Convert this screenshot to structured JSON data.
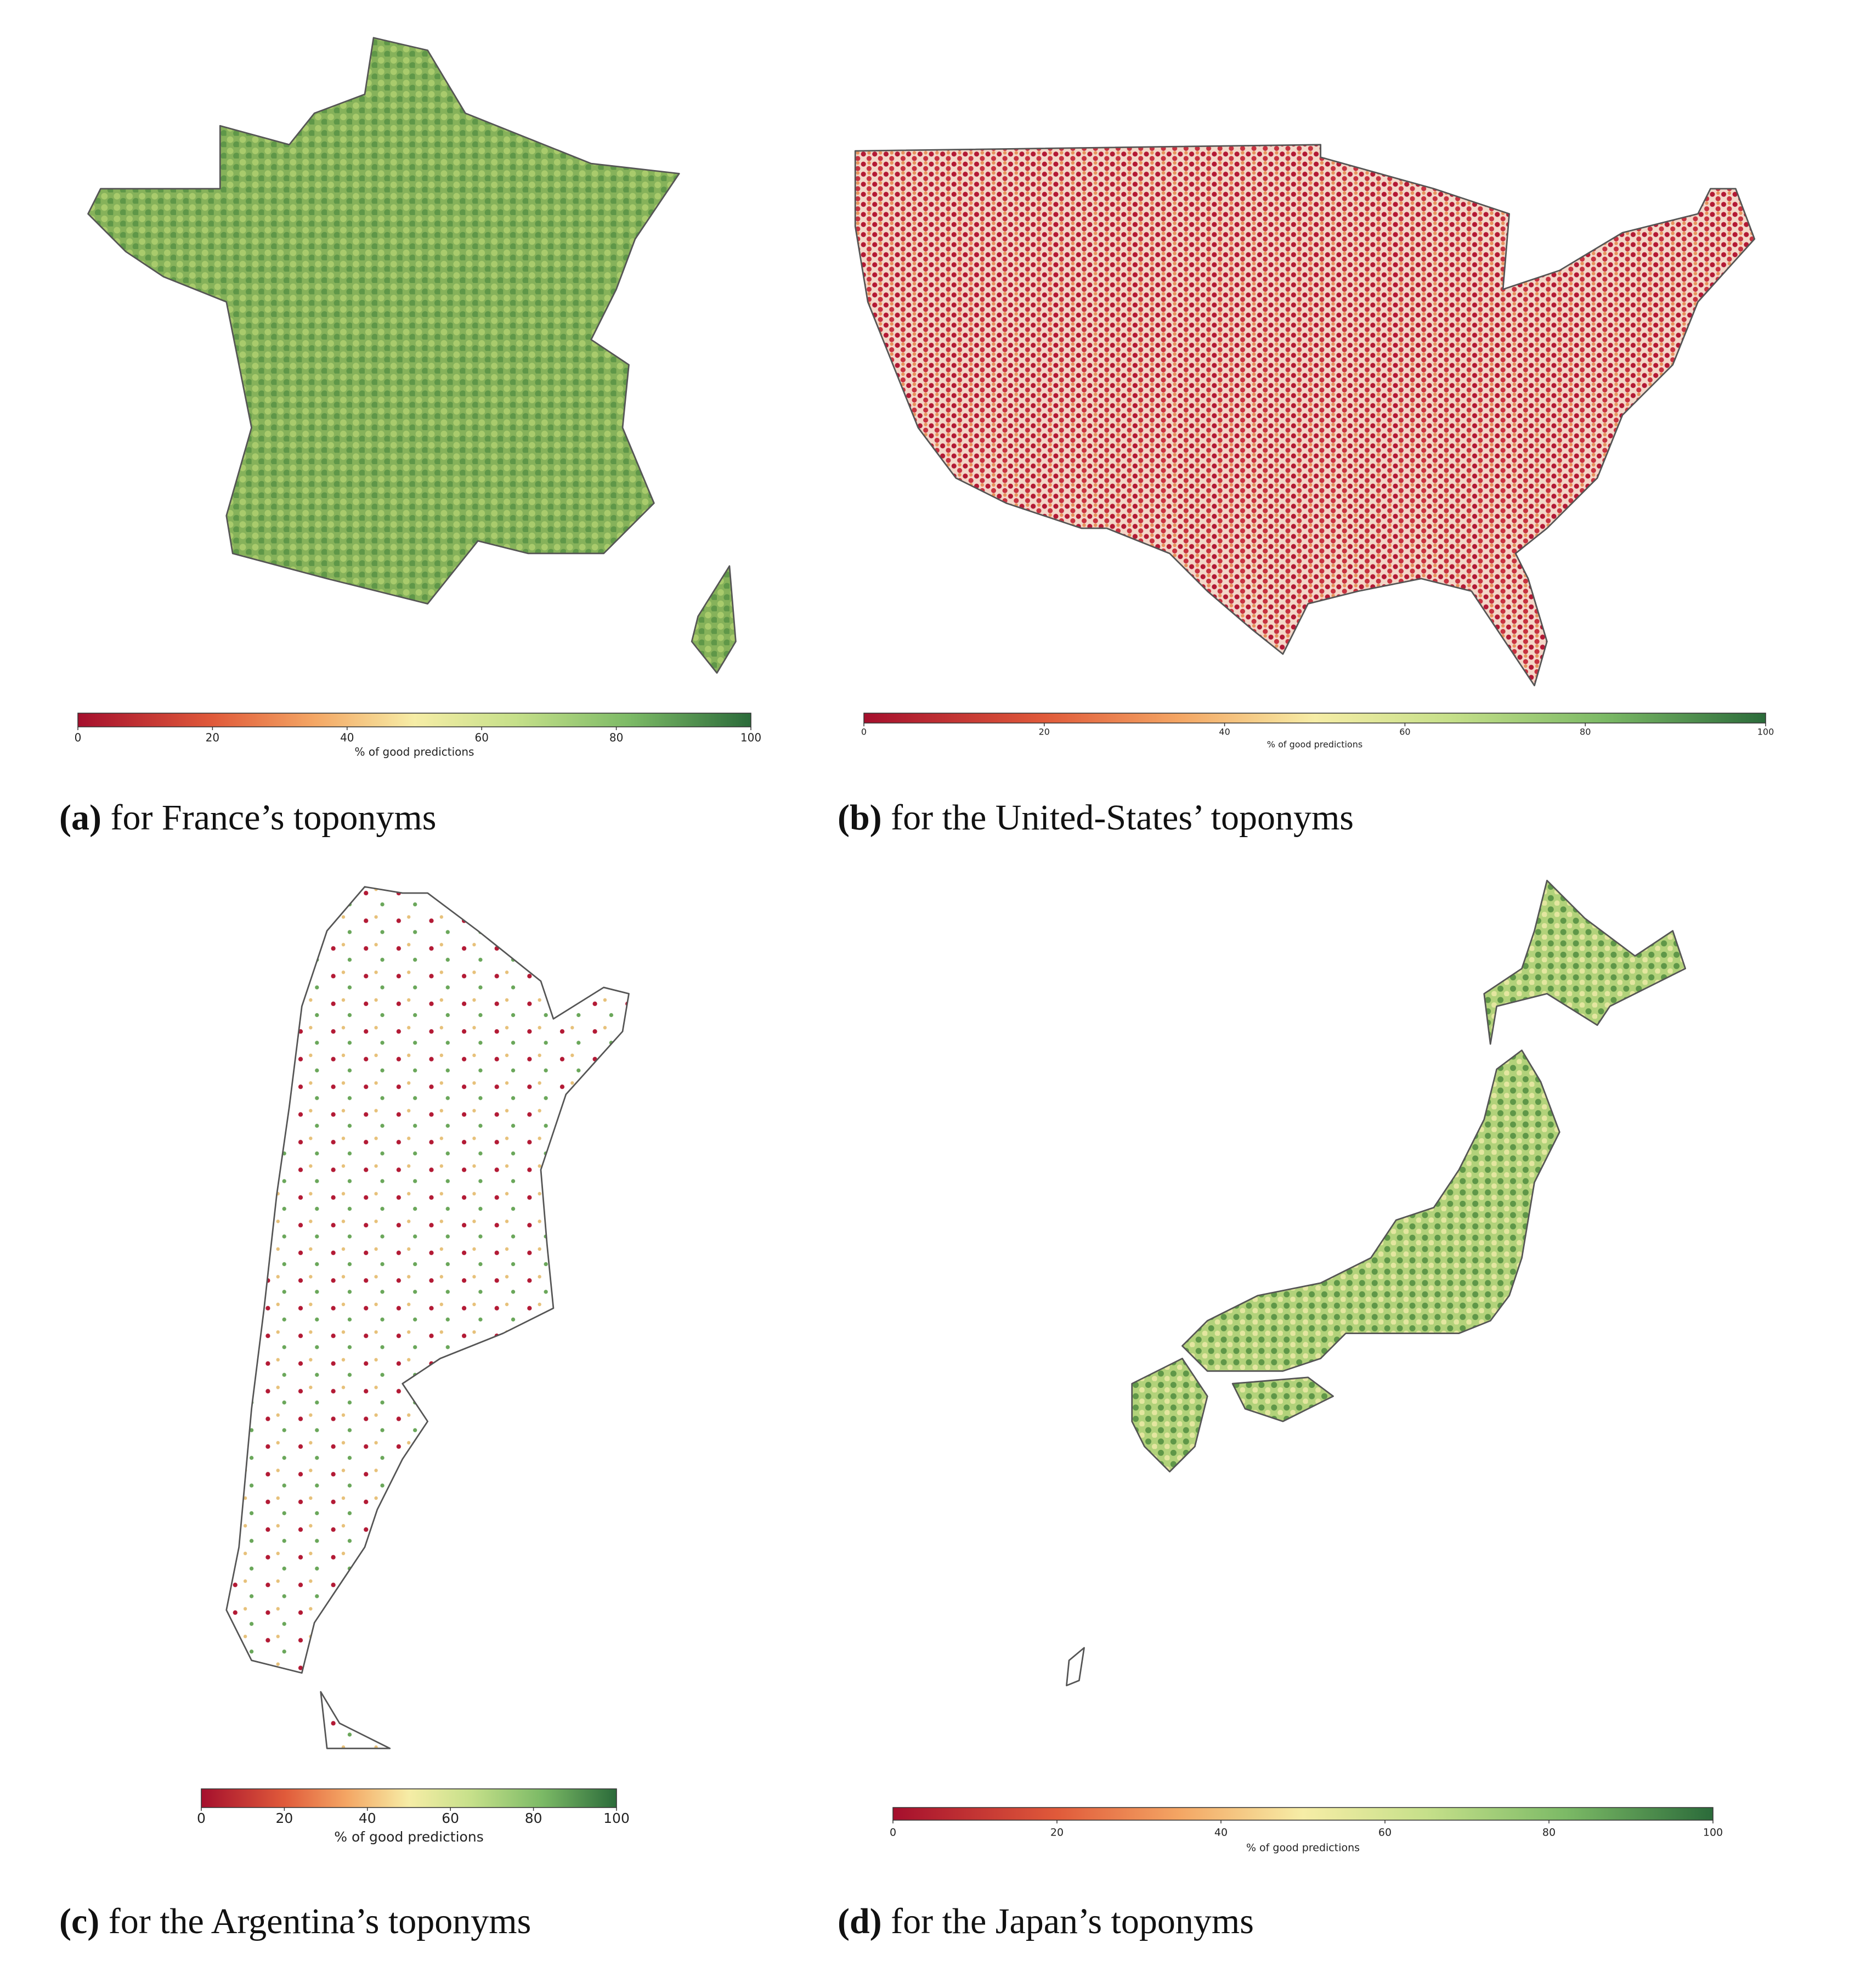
{
  "panels": [
    {
      "label": "(a)",
      "caption": "for France’s toponyms",
      "colorbar": {
        "lim": [
          0,
          100
        ],
        "ticks": [
          0,
          20,
          40,
          60,
          80,
          100
        ],
        "label": "% of good predictions"
      }
    },
    {
      "label": "(b)",
      "caption": "for the United-States’ toponyms",
      "colorbar": {
        "lim": [
          0,
          100
        ],
        "ticks": [
          0,
          20,
          40,
          60,
          80,
          100
        ],
        "label": "% of good predictions"
      }
    },
    {
      "label": "(c)",
      "caption": "for the Argentina’s toponyms",
      "colorbar": {
        "lim": [
          0,
          100
        ],
        "ticks": [
          0,
          20,
          40,
          60,
          80,
          100
        ],
        "label": "% of good predictions"
      }
    },
    {
      "label": "(d)",
      "caption": "for the Japan’s toponyms",
      "colorbar": {
        "lim": [
          0,
          100
        ],
        "ticks": [
          0,
          20,
          40,
          60,
          80,
          100
        ],
        "label": "% of good predictions"
      }
    }
  ]
}
